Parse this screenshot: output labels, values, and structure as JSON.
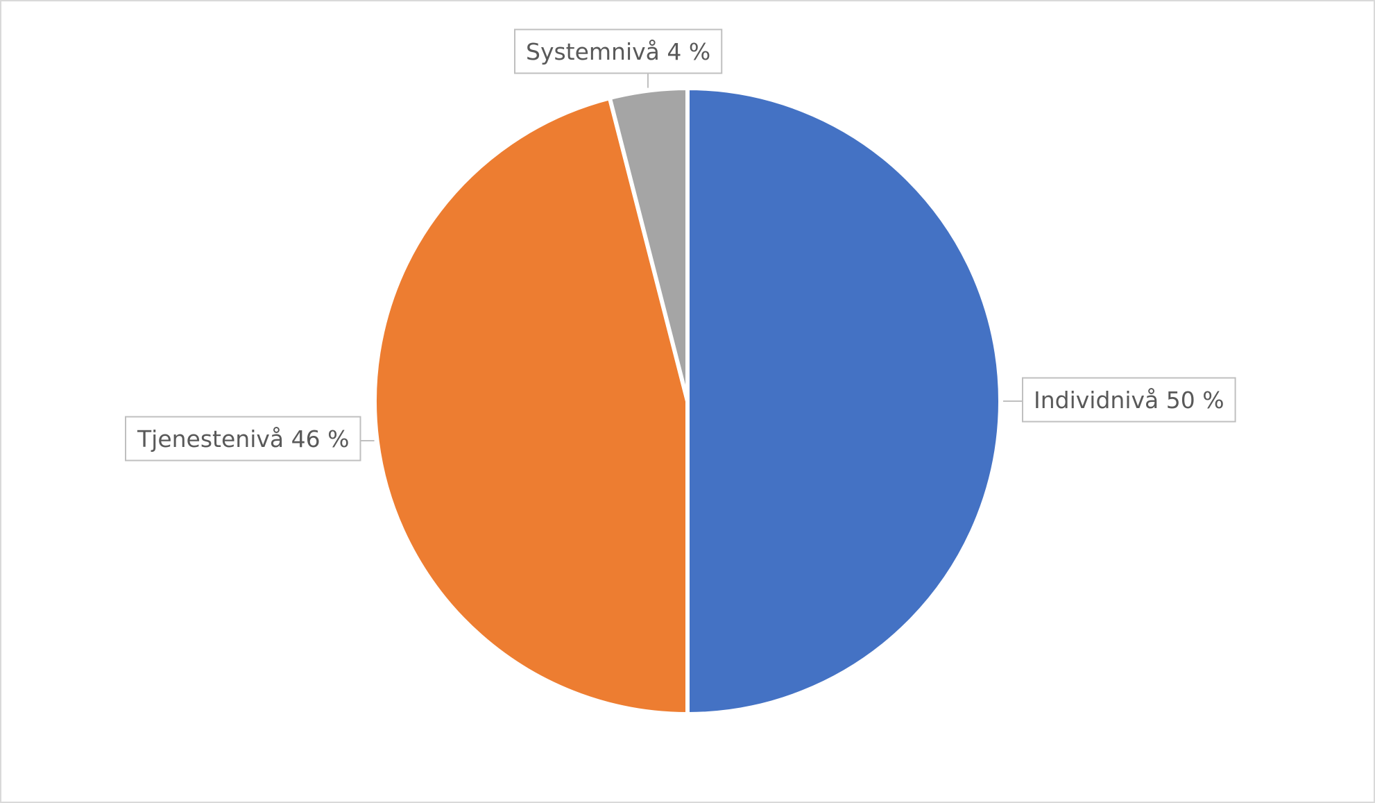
{
  "chart_data": {
    "type": "pie",
    "categories": [
      "Individnivå",
      "Tjenestenivå",
      "Systemnivå"
    ],
    "values": [
      50,
      46,
      4
    ],
    "value_labels": [
      "50 %",
      "46 %",
      "4 %"
    ],
    "colors": [
      "#4472c4",
      "#ed7d31",
      "#a5a5a5"
    ]
  }
}
